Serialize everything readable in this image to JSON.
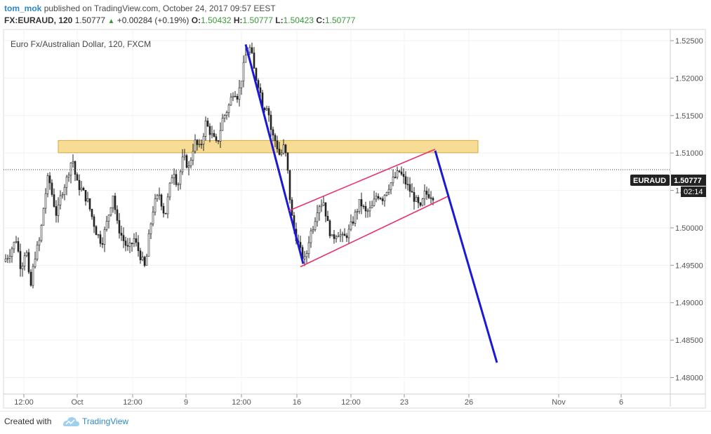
{
  "header": {
    "author": "tom_mok",
    "published": "published on TradingView.com, October 24, 2017 09:57 EEST",
    "symbol": "FX:EURAUD, 120",
    "last": "1.50777",
    "change": "+0.00284 (+0.19%)",
    "o_label": "O:",
    "o_value": "1.50432",
    "h_label": "H:",
    "h_value": "1.50777",
    "l_label": "L:",
    "l_value": "1.50423",
    "c_label": "C:",
    "c_value": "1.50777"
  },
  "footer": {
    "created_with": "Created with",
    "brand": "TradingView"
  },
  "chart_data": {
    "type": "candlestick",
    "title": "Euro Fx/Australian Dollar, 120, FXCM",
    "symbol_tag": "EURAUD",
    "last_price_label": "1.50777",
    "countdown": "02:14",
    "last_price": 1.50777,
    "y_ticks": [
      "1.52500",
      "1.52000",
      "1.51500",
      "1.51000",
      "1.50500",
      "1.50000",
      "1.49500",
      "1.49000",
      "1.48500",
      "1.48000"
    ],
    "y_tick_values": [
      1.525,
      1.52,
      1.515,
      1.51,
      1.505,
      1.5,
      1.495,
      1.49,
      1.485,
      1.48
    ],
    "x_ticks": [
      "12:00",
      "Oct",
      "12:00",
      "9",
      "12:00",
      "16",
      "12:00",
      "23",
      "26",
      "Nov",
      "6"
    ],
    "price_path": [
      [
        0,
        1.4955
      ],
      [
        8,
        1.4965
      ],
      [
        18,
        1.4985
      ],
      [
        25,
        1.4945
      ],
      [
        32,
        1.4975
      ],
      [
        38,
        1.4915
      ],
      [
        44,
        1.496
      ],
      [
        52,
        1.4985
      ],
      [
        58,
        1.5035
      ],
      [
        64,
        1.507
      ],
      [
        70,
        1.504
      ],
      [
        76,
        1.5015
      ],
      [
        82,
        1.5045
      ],
      [
        90,
        1.5065
      ],
      [
        98,
        1.5095
      ],
      [
        104,
        1.506
      ],
      [
        112,
        1.505
      ],
      [
        120,
        1.5035
      ],
      [
        126,
        1.5015
      ],
      [
        132,
        1.4995
      ],
      [
        140,
        1.498
      ],
      [
        148,
        1.501
      ],
      [
        156,
        1.5045
      ],
      [
        162,
        1.5005
      ],
      [
        170,
        1.4985
      ],
      [
        178,
        1.497
      ],
      [
        186,
        1.4985
      ],
      [
        194,
        1.4965
      ],
      [
        202,
        1.4945
      ],
      [
        208,
        1.4995
      ],
      [
        214,
        1.503
      ],
      [
        222,
        1.5045
      ],
      [
        230,
        1.5015
      ],
      [
        236,
        1.505
      ],
      [
        242,
        1.508
      ],
      [
        248,
        1.5055
      ],
      [
        256,
        1.5095
      ],
      [
        264,
        1.508
      ],
      [
        272,
        1.5115
      ],
      [
        280,
        1.5105
      ],
      [
        288,
        1.514
      ],
      [
        296,
        1.5125
      ],
      [
        304,
        1.511
      ],
      [
        312,
        1.5145
      ],
      [
        320,
        1.516
      ],
      [
        328,
        1.5185
      ],
      [
        334,
        1.5175
      ],
      [
        340,
        1.5205
      ],
      [
        346,
        1.5235
      ],
      [
        352,
        1.524
      ],
      [
        358,
        1.5205
      ],
      [
        364,
        1.519
      ],
      [
        370,
        1.516
      ],
      [
        376,
        1.5165
      ],
      [
        382,
        1.5125
      ],
      [
        388,
        1.5115
      ],
      [
        394,
        1.5095
      ],
      [
        400,
        1.511
      ],
      [
        404,
        1.5085
      ],
      [
        408,
        1.504
      ],
      [
        412,
        1.5005
      ],
      [
        418,
        1.4985
      ],
      [
        424,
        1.4965
      ],
      [
        430,
        1.4955
      ],
      [
        436,
        1.499
      ],
      [
        442,
        1.5005
      ],
      [
        448,
        1.503
      ],
      [
        456,
        1.5035
      ],
      [
        462,
        1.5005
      ],
      [
        468,
        1.4985
      ],
      [
        476,
        1.4995
      ],
      [
        484,
        1.4985
      ],
      [
        492,
        1.4995
      ],
      [
        500,
        1.5015
      ],
      [
        508,
        1.5035
      ],
      [
        516,
        1.502
      ],
      [
        524,
        1.5025
      ],
      [
        532,
        1.5045
      ],
      [
        540,
        1.504
      ],
      [
        548,
        1.5055
      ],
      [
        556,
        1.5065
      ],
      [
        564,
        1.5075
      ],
      [
        570,
        1.5065
      ],
      [
        576,
        1.5055
      ],
      [
        582,
        1.5045
      ],
      [
        588,
        1.5035
      ],
      [
        594,
        1.5025
      ],
      [
        600,
        1.5045
      ],
      [
        606,
        1.5045
      ],
      [
        612,
        1.5043
      ],
      [
        618,
        1.50777
      ]
    ],
    "annotations": {
      "resistance_zone": {
        "from": 1.5105,
        "to": 1.5112,
        "color": "#f7dc96"
      },
      "down_line": {
        "from": [
          1.5245,
          350
        ],
        "to": [
          1.4952,
          432
        ]
      },
      "channel_upper": {
        "from": [
          1.5023,
          412
        ],
        "to": [
          1.5105,
          620
        ]
      },
      "channel_lower": {
        "from": [
          1.4948,
          428
        ],
        "to": [
          1.5042,
          638
        ]
      },
      "projection": {
        "from": [
          1.5103,
          620
        ],
        "to": [
          1.482,
          708
        ]
      },
      "line_colors": {
        "trend": "#1a1ad6",
        "channel": "#e8336a"
      }
    },
    "ylim": [
      1.4778,
      1.5265
    ]
  }
}
